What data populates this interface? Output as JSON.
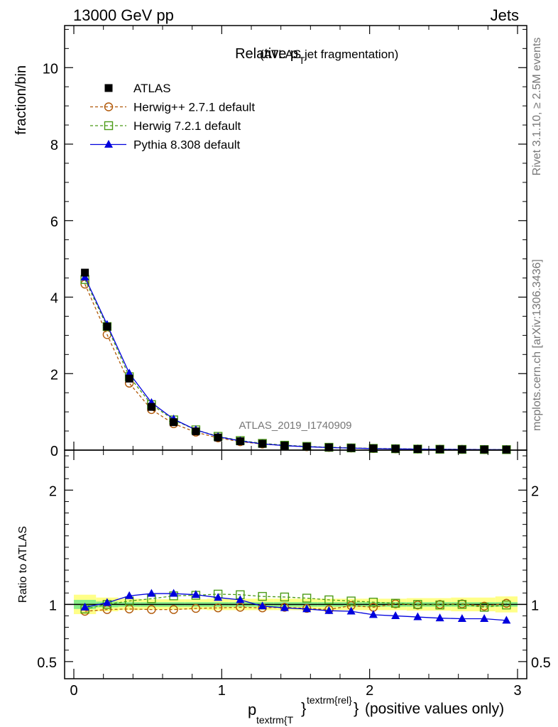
{
  "header": {
    "left": "13000 GeV pp",
    "right": "Jets"
  },
  "side_labels": {
    "rivet": "Rivet 3.1.10, ≥ 2.5M events",
    "site": "mcplots.cern.ch [arXiv:1306.3436]"
  },
  "chart_data": [
    {
      "type": "line",
      "panel": "main",
      "title_main": "Relative p",
      "title_sub": "T",
      "title_rest": "(ATLAS jet fragmentation)",
      "ylabel": "fraction/bin",
      "watermark": "ATLAS_2019_I1740909",
      "xlim": [
        0,
        3
      ],
      "ylim": [
        0,
        11.1
      ],
      "yticks": [
        "0",
        "2",
        "4",
        "6",
        "8",
        "10"
      ],
      "yticks_values": [
        0,
        2,
        4,
        6,
        8,
        10
      ],
      "legend_position": "top-left",
      "x": [
        0.075,
        0.225,
        0.375,
        0.525,
        0.675,
        0.825,
        0.975,
        1.125,
        1.275,
        1.425,
        1.575,
        1.725,
        1.875,
        2.025,
        2.175,
        2.325,
        2.475,
        2.625,
        2.775,
        2.925
      ],
      "series": [
        {
          "name": "ATLAS",
          "color": "#000000",
          "marker": "square-filled",
          "values": [
            4.64,
            3.23,
            1.87,
            1.13,
            0.73,
            0.49,
            0.33,
            0.23,
            0.165,
            0.12,
            0.092,
            0.071,
            0.056,
            0.044,
            0.035,
            0.028,
            0.023,
            0.019,
            0.016,
            0.013
          ]
        },
        {
          "name": "Herwig++ 2.7.1 default",
          "color": "#b15807",
          "marker": "circle-open",
          "dash": true,
          "values": [
            4.34,
            3.02,
            1.75,
            1.06,
            0.69,
            0.47,
            0.32,
            0.22,
            0.16,
            0.116,
            0.089,
            0.068,
            0.055,
            0.043,
            0.035,
            0.028,
            0.023,
            0.019,
            0.016,
            0.013
          ]
        },
        {
          "name": "Herwig 7.2.1 default",
          "color": "#4b9b16",
          "marker": "square-open",
          "dash": true,
          "values": [
            4.46,
            3.23,
            1.92,
            1.19,
            0.79,
            0.53,
            0.36,
            0.25,
            0.177,
            0.128,
            0.097,
            0.074,
            0.058,
            0.045,
            0.036,
            0.028,
            0.023,
            0.019,
            0.0155,
            0.013
          ]
        },
        {
          "name": "Pythia 8.308 default",
          "color": "#0000dd",
          "marker": "triangle-filled",
          "values": [
            4.52,
            3.28,
            2.01,
            1.24,
            0.81,
            0.53,
            0.35,
            0.24,
            0.163,
            0.117,
            0.089,
            0.067,
            0.053,
            0.04,
            0.032,
            0.025,
            0.02,
            0.0167,
            0.014,
            0.011
          ]
        }
      ]
    },
    {
      "type": "line",
      "panel": "ratio",
      "ylabel": "Ratio to ATLAS",
      "xlabel_main": "p",
      "xlabel_sub": "textrm{T",
      "xlabel_sup": "textrm{rel}",
      "xlabel_brace": "}",
      "xlabel_rest": "(positive values only)",
      "xlim": [
        0,
        3
      ],
      "ylim": [
        0.35,
        2.35
      ],
      "xticks": [
        "0",
        "1",
        "2",
        "3"
      ],
      "xticks_values": [
        0,
        1,
        2,
        3
      ],
      "yticks": [
        "0.5",
        "1",
        "2"
      ],
      "yticks_values": [
        0.5,
        1,
        2
      ],
      "band_yellow": [
        0.085,
        0.06,
        0.05,
        0.045,
        0.045,
        0.045,
        0.05,
        0.05,
        0.05,
        0.05,
        0.05,
        0.05,
        0.05,
        0.05,
        0.05,
        0.055,
        0.055,
        0.06,
        0.06,
        0.07
      ],
      "band_green": [
        0.04,
        0.025,
        0.02,
        0.02,
        0.02,
        0.02,
        0.02,
        0.02,
        0.02,
        0.02,
        0.02,
        0.02,
        0.02,
        0.02,
        0.02,
        0.02,
        0.02,
        0.02,
        0.02,
        0.02
      ],
      "series": [
        {
          "name": "Herwig++ 2.7.1 default",
          "color": "#b15807",
          "marker": "circle-open",
          "dash": true,
          "values": [
            0.94,
            0.955,
            0.96,
            0.955,
            0.955,
            0.965,
            0.97,
            0.975,
            0.97,
            0.975,
            0.965,
            0.955,
            0.99,
            0.975,
            1.005,
            0.995,
            1.0,
            1.005,
            0.985,
            1.01
          ]
        },
        {
          "name": "Herwig 7.2.1 default",
          "color": "#4b9b16",
          "marker": "square-open",
          "dash": true,
          "values": [
            0.96,
            1.0,
            1.03,
            1.05,
            1.075,
            1.08,
            1.09,
            1.085,
            1.07,
            1.065,
            1.055,
            1.04,
            1.03,
            1.02,
            1.01,
            1.0,
            0.995,
            1.0,
            0.975,
            0.995
          ]
        },
        {
          "name": "Pythia 8.308 default",
          "color": "#0000dd",
          "marker": "triangle-filled",
          "values": [
            0.975,
            1.015,
            1.075,
            1.095,
            1.095,
            1.085,
            1.06,
            1.04,
            0.985,
            0.97,
            0.96,
            0.945,
            0.94,
            0.91,
            0.9,
            0.89,
            0.88,
            0.875,
            0.875,
            0.86
          ]
        }
      ]
    }
  ]
}
